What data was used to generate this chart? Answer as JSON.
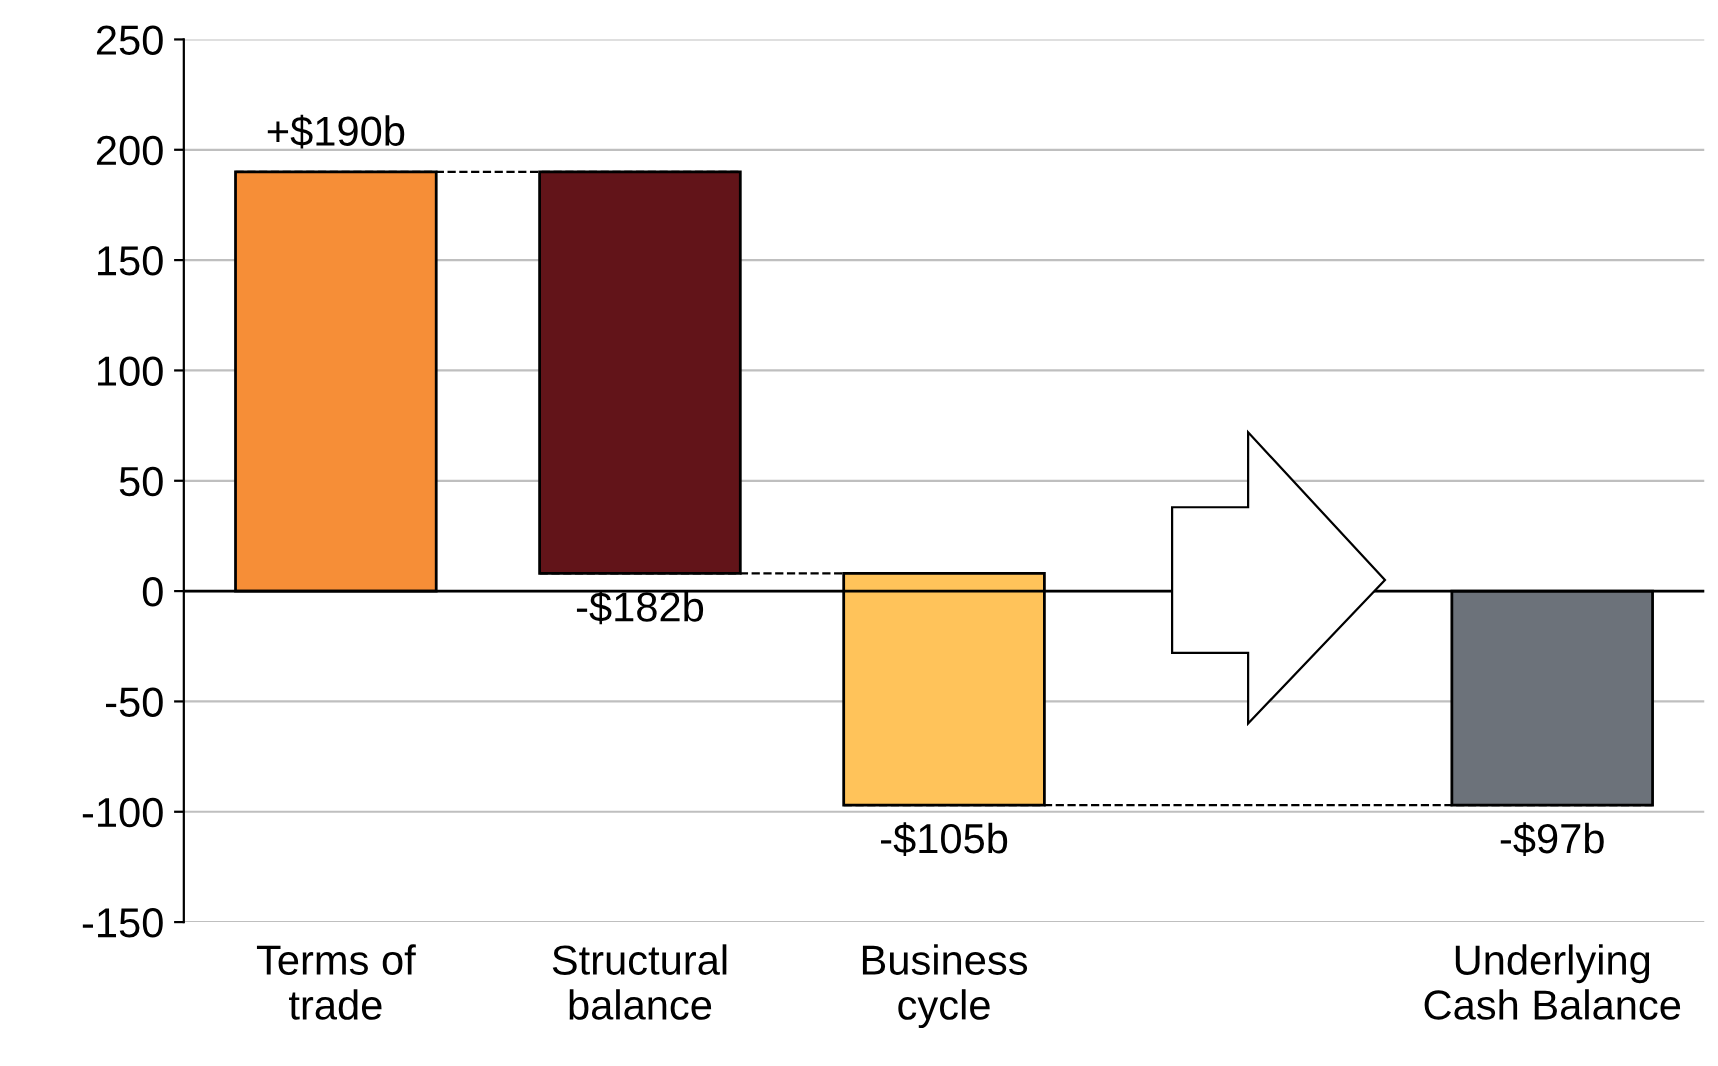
{
  "chart_data": {
    "type": "bar",
    "categories": [
      "Terms of\ntrade",
      "Structural\nbalance",
      "Business\ncycle",
      null,
      "Underlying\nCash Balance"
    ],
    "values": [
      190,
      -182,
      -105,
      null,
      -97
    ],
    "base": [
      0,
      190,
      8,
      null,
      0
    ],
    "colors": [
      "#f68e37",
      "#621419",
      "#ffc35a",
      null,
      "#6c727a"
    ],
    "value_labels": [
      "+$190b",
      "-$182b",
      "-$105b",
      null,
      "-$97b"
    ],
    "ylim": [
      -150,
      250
    ],
    "yticks": [
      -150,
      -100,
      -50,
      0,
      50,
      100,
      150,
      200,
      250
    ],
    "grid": "y"
  }
}
